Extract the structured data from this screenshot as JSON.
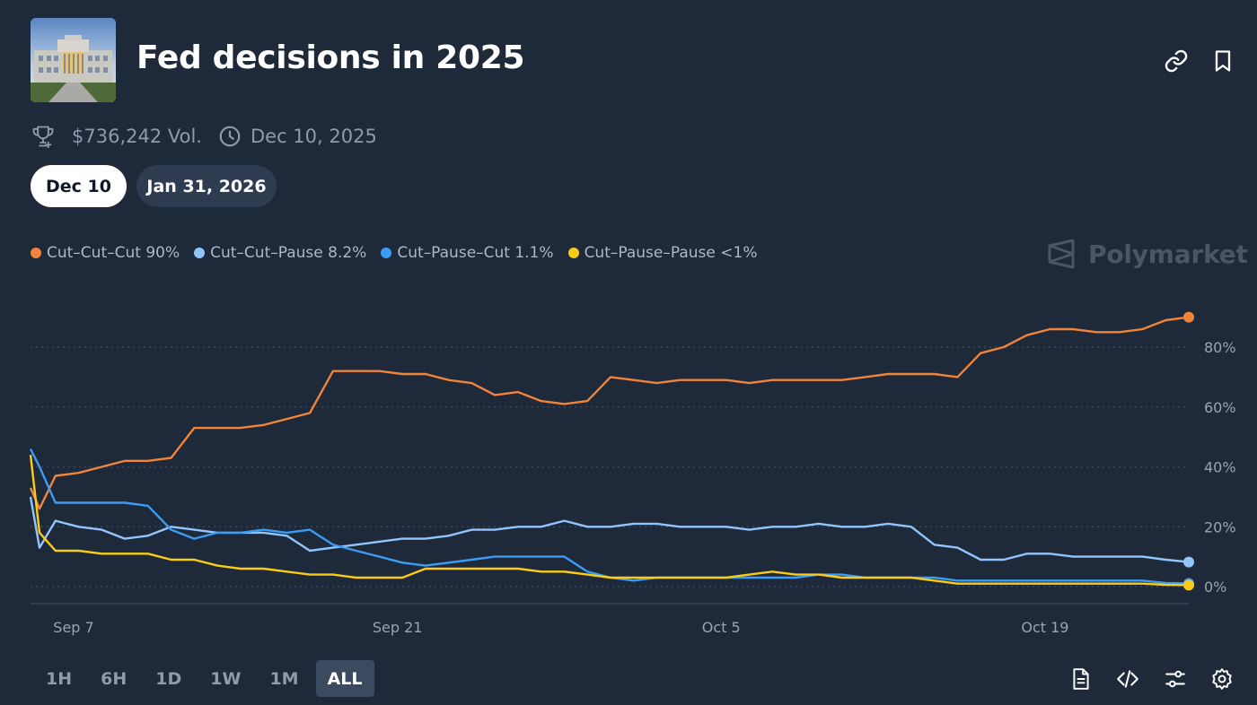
{
  "header": {
    "title": "Fed decisions in 2025",
    "volume": "$736,242 Vol.",
    "end_date": "Dec 10, 2025"
  },
  "tabs": [
    {
      "label": "Dec 10",
      "active": true
    },
    {
      "label": "Jan 31, 2026",
      "active": false
    }
  ],
  "legend": [
    {
      "label": "Cut–Cut–Cut 90%",
      "color": "#f0843a"
    },
    {
      "label": "Cut–Cut–Pause 8.2%",
      "color": "#93c5fd"
    },
    {
      "label": "Cut–Pause–Cut 1.1%",
      "color": "#3b9cf5"
    },
    {
      "label": "Cut–Pause–Pause <1%",
      "color": "#facc15"
    }
  ],
  "brand": "Polymarket",
  "time_ranges": [
    "1H",
    "6H",
    "1D",
    "1W",
    "1M",
    "ALL"
  ],
  "selected_range": "ALL",
  "icons": {
    "link": "link-icon",
    "bookmark": "bookmark-icon",
    "trophy": "trophy-icon",
    "clock": "clock-icon",
    "doc": "document-icon",
    "embed": "code-icon",
    "filters": "sliders-icon",
    "settings": "gear-icon"
  },
  "chart_data": {
    "type": "line",
    "title": "",
    "xlabel": "",
    "ylabel": "",
    "x_ticks": [
      "Sep 7",
      "Sep 21",
      "Oct 5",
      "Oct 19"
    ],
    "y_ticks": [
      "0%",
      "20%",
      "40%",
      "60%",
      "80%"
    ],
    "ylim": [
      0,
      100
    ],
    "x_range": [
      "Sep 7",
      "Oct 27"
    ],
    "grid": true,
    "legend_position": "top-left",
    "series": [
      {
        "name": "Cut–Cut–Cut",
        "color": "#f0843a",
        "x": [
          "Sep 7",
          "Sep 7",
          "Sep 8",
          "Sep 9",
          "Sep 10",
          "Sep 11",
          "Sep 12",
          "Sep 13",
          "Sep 14",
          "Sep 15",
          "Sep 16",
          "Sep 17",
          "Sep 18",
          "Sep 19",
          "Sep 20",
          "Sep 21",
          "Sep 22",
          "Sep 23",
          "Sep 24",
          "Sep 25",
          "Sep 26",
          "Sep 27",
          "Sep 28",
          "Sep 29",
          "Sep 30",
          "Oct 1",
          "Oct 2",
          "Oct 3",
          "Oct 4",
          "Oct 5",
          "Oct 6",
          "Oct 7",
          "Oct 8",
          "Oct 9",
          "Oct 10",
          "Oct 11",
          "Oct 12",
          "Oct 13",
          "Oct 14",
          "Oct 15",
          "Oct 16",
          "Oct 17",
          "Oct 18",
          "Oct 19",
          "Oct 20",
          "Oct 21",
          "Oct 22",
          "Oct 23",
          "Oct 24",
          "Oct 25",
          "Oct 26",
          "Oct 27"
        ],
        "y": [
          33,
          26,
          37,
          38,
          40,
          42,
          42,
          43,
          53,
          53,
          53,
          54,
          56,
          58,
          72,
          72,
          72,
          71,
          71,
          69,
          68,
          64,
          65,
          62,
          61,
          62,
          70,
          69,
          68,
          69,
          69,
          69,
          68,
          69,
          69,
          69,
          69,
          70,
          71,
          71,
          71,
          70,
          78,
          80,
          84,
          86,
          86,
          85,
          85,
          86,
          89,
          90
        ]
      },
      {
        "name": "Cut–Cut–Pause",
        "color": "#93c5fd",
        "x": [
          "Sep 7",
          "Sep 7",
          "Sep 8",
          "Sep 9",
          "Sep 10",
          "Sep 11",
          "Sep 12",
          "Sep 13",
          "Sep 14",
          "Sep 15",
          "Sep 16",
          "Sep 17",
          "Sep 18",
          "Sep 19",
          "Sep 20",
          "Sep 21",
          "Sep 22",
          "Sep 23",
          "Sep 24",
          "Sep 25",
          "Sep 26",
          "Sep 27",
          "Sep 28",
          "Sep 29",
          "Sep 30",
          "Oct 1",
          "Oct 2",
          "Oct 3",
          "Oct 4",
          "Oct 5",
          "Oct 6",
          "Oct 7",
          "Oct 8",
          "Oct 9",
          "Oct 10",
          "Oct 11",
          "Oct 12",
          "Oct 13",
          "Oct 14",
          "Oct 15",
          "Oct 16",
          "Oct 17",
          "Oct 18",
          "Oct 19",
          "Oct 20",
          "Oct 21",
          "Oct 22",
          "Oct 23",
          "Oct 24",
          "Oct 25",
          "Oct 26",
          "Oct 27"
        ],
        "y": [
          30,
          13,
          22,
          20,
          19,
          16,
          17,
          20,
          19,
          18,
          18,
          18,
          17,
          12,
          13,
          14,
          15,
          16,
          16,
          17,
          19,
          19,
          20,
          20,
          22,
          20,
          20,
          21,
          21,
          20,
          20,
          20,
          19,
          20,
          20,
          21,
          20,
          20,
          21,
          20,
          14,
          13,
          9,
          9,
          11,
          11,
          10,
          10,
          10,
          10,
          9,
          8.2
        ]
      },
      {
        "name": "Cut–Pause–Cut",
        "color": "#3b9cf5",
        "x": [
          "Sep 7",
          "Sep 7",
          "Sep 8",
          "Sep 9",
          "Sep 10",
          "Sep 11",
          "Sep 12",
          "Sep 13",
          "Sep 14",
          "Sep 15",
          "Sep 16",
          "Sep 17",
          "Sep 18",
          "Sep 19",
          "Sep 20",
          "Sep 21",
          "Sep 22",
          "Sep 23",
          "Sep 24",
          "Sep 25",
          "Sep 26",
          "Sep 27",
          "Sep 28",
          "Sep 29",
          "Sep 30",
          "Oct 1",
          "Oct 2",
          "Oct 3",
          "Oct 4",
          "Oct 5",
          "Oct 6",
          "Oct 7",
          "Oct 8",
          "Oct 9",
          "Oct 10",
          "Oct 11",
          "Oct 12",
          "Oct 13",
          "Oct 14",
          "Oct 15",
          "Oct 16",
          "Oct 17",
          "Oct 18",
          "Oct 19",
          "Oct 20",
          "Oct 21",
          "Oct 22",
          "Oct 23",
          "Oct 24",
          "Oct 25",
          "Oct 26",
          "Oct 27"
        ],
        "y": [
          46,
          40,
          28,
          28,
          28,
          28,
          27,
          19,
          16,
          18,
          18,
          19,
          18,
          19,
          14,
          12,
          10,
          8,
          7,
          8,
          9,
          10,
          10,
          10,
          10,
          5,
          3,
          2,
          3,
          3,
          3,
          3,
          3,
          3,
          3,
          4,
          4,
          3,
          3,
          3,
          3,
          2,
          2,
          2,
          2,
          2,
          2,
          2,
          2,
          2,
          1.2,
          1.1
        ]
      },
      {
        "name": "Cut–Pause–Pause",
        "color": "#facc15",
        "x": [
          "Sep 7",
          "Sep 7",
          "Sep 8",
          "Sep 9",
          "Sep 10",
          "Sep 11",
          "Sep 12",
          "Sep 13",
          "Sep 14",
          "Sep 15",
          "Sep 16",
          "Sep 17",
          "Sep 18",
          "Sep 19",
          "Sep 20",
          "Sep 21",
          "Sep 22",
          "Sep 23",
          "Sep 24",
          "Sep 25",
          "Sep 26",
          "Sep 27",
          "Sep 28",
          "Sep 29",
          "Sep 30",
          "Oct 1",
          "Oct 2",
          "Oct 3",
          "Oct 4",
          "Oct 5",
          "Oct 6",
          "Oct 7",
          "Oct 8",
          "Oct 9",
          "Oct 10",
          "Oct 11",
          "Oct 12",
          "Oct 13",
          "Oct 14",
          "Oct 15",
          "Oct 16",
          "Oct 17",
          "Oct 18",
          "Oct 19",
          "Oct 20",
          "Oct 21",
          "Oct 22",
          "Oct 23",
          "Oct 24",
          "Oct 25",
          "Oct 26",
          "Oct 27"
        ],
        "y": [
          44,
          18,
          12,
          12,
          11,
          11,
          11,
          9,
          9,
          7,
          6,
          6,
          5,
          4,
          4,
          3,
          3,
          3,
          6,
          6,
          6,
          6,
          6,
          5,
          5,
          4,
          3,
          3,
          3,
          3,
          3,
          3,
          4,
          5,
          4,
          4,
          3,
          3,
          3,
          3,
          2,
          1,
          1,
          1,
          1,
          1,
          1,
          1,
          1,
          1,
          0.6,
          0.5
        ]
      }
    ]
  }
}
